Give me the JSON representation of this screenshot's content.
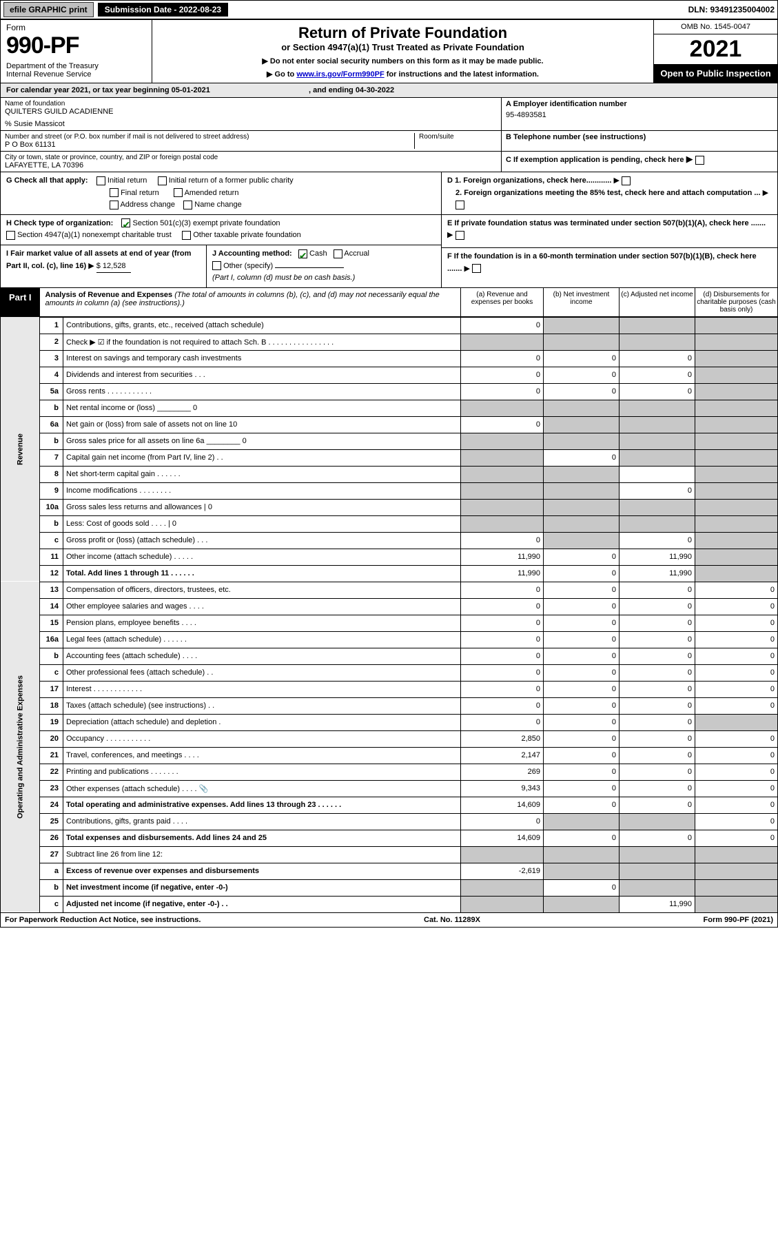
{
  "topbar": {
    "efile": "efile GRAPHIC print",
    "submission_label": "Submission Date - 2022-08-23",
    "dln": "DLN: 93491235004002"
  },
  "header": {
    "form_word": "Form",
    "form_number": "990-PF",
    "dept": "Department of the Treasury\nInternal Revenue Service",
    "title": "Return of Private Foundation",
    "subtitle": "or Section 4947(a)(1) Trust Treated as Private Foundation",
    "note1": "▶ Do not enter social security numbers on this form as it may be made public.",
    "note2": "▶ Go to www.irs.gov/Form990PF for instructions and the latest information.",
    "omb": "OMB No. 1545-0047",
    "year": "2021",
    "open": "Open to Public Inspection"
  },
  "cal": {
    "text": "For calendar year 2021, or tax year beginning 05-01-2021",
    "ending_label": ", and ending 04-30-2022"
  },
  "entity": {
    "name_label": "Name of foundation",
    "name": "QUILTERS GUILD ACADIENNE",
    "care_of": "% Susie Massicot",
    "addr_label": "Number and street (or P.O. box number if mail is not delivered to street address)",
    "addr": "P O Box 61131",
    "room_label": "Room/suite",
    "city_label": "City or town, state or province, country, and ZIP or foreign postal code",
    "city": "LAFAYETTE, LA  70396",
    "ein_label": "A Employer identification number",
    "ein": "95-4893581",
    "tel_label": "B Telephone number (see instructions)",
    "c_label": "C If exemption application is pending, check here",
    "d1": "D 1. Foreign organizations, check here............",
    "d2": "2. Foreign organizations meeting the 85% test, check here and attach computation ...",
    "e": "E  If private foundation status was terminated under section 507(b)(1)(A), check here .......",
    "f": "F  If the foundation is in a 60-month termination under section 507(b)(1)(B), check here .......",
    "g_label": "G Check all that apply:",
    "g_opts": [
      "Initial return",
      "Initial return of a former public charity",
      "Final return",
      "Amended return",
      "Address change",
      "Name change"
    ],
    "h_label": "H Check type of organization:",
    "h_opt1": "Section 501(c)(3) exempt private foundation",
    "h_opt2": "Section 4947(a)(1) nonexempt charitable trust",
    "h_opt3": "Other taxable private foundation",
    "i_label": "I Fair market value of all assets at end of year (from Part II, col. (c), line 16)",
    "i_value": "$ 12,528",
    "j_label": "J Accounting method:",
    "j_cash": "Cash",
    "j_accrual": "Accrual",
    "j_other": "Other (specify)",
    "j_note": "(Part I, column (d) must be on cash basis.)"
  },
  "partI": {
    "label": "Part I",
    "title": "Analysis of Revenue and Expenses",
    "note": "(The total of amounts in columns (b), (c), and (d) may not necessarily equal the amounts in column (a) (see instructions).)",
    "cols": {
      "a": "(a)  Revenue and expenses per books",
      "b": "(b)  Net investment income",
      "c": "(c)  Adjusted net income",
      "d": "(d)  Disbursements for charitable purposes (cash basis only)"
    }
  },
  "sides": {
    "revenue": "Revenue",
    "expenses": "Operating and Administrative Expenses"
  },
  "rows": [
    {
      "n": "1",
      "lbl": "Contributions, gifts, grants, etc., received (attach schedule)",
      "a": "0",
      "b": "",
      "c": "",
      "d": "",
      "shade": [
        "b",
        "c",
        "d"
      ]
    },
    {
      "n": "2",
      "lbl": "Check ▶ ☑ if the foundation is not required to attach Sch. B  . . . . . . . . . . . . . . . .",
      "a": "",
      "b": "",
      "c": "",
      "d": "",
      "shade": [
        "a",
        "b",
        "c",
        "d"
      ]
    },
    {
      "n": "3",
      "lbl": "Interest on savings and temporary cash investments",
      "a": "0",
      "b": "0",
      "c": "0",
      "d": "",
      "shade": [
        "d"
      ]
    },
    {
      "n": "4",
      "lbl": "Dividends and interest from securities  . . .",
      "a": "0",
      "b": "0",
      "c": "0",
      "d": "",
      "shade": [
        "d"
      ]
    },
    {
      "n": "5a",
      "lbl": "Gross rents  . . . . . . . . . . .",
      "a": "0",
      "b": "0",
      "c": "0",
      "d": "",
      "shade": [
        "d"
      ]
    },
    {
      "n": "b",
      "lbl": "Net rental income or (loss)  ________ 0",
      "a": "",
      "b": "",
      "c": "",
      "d": "",
      "shade": [
        "a",
        "b",
        "c",
        "d"
      ]
    },
    {
      "n": "6a",
      "lbl": "Net gain or (loss) from sale of assets not on line 10",
      "a": "0",
      "b": "",
      "c": "",
      "d": "",
      "shade": [
        "b",
        "c",
        "d"
      ]
    },
    {
      "n": "b",
      "lbl": "Gross sales price for all assets on line 6a ________ 0",
      "a": "",
      "b": "",
      "c": "",
      "d": "",
      "shade": [
        "a",
        "b",
        "c",
        "d"
      ]
    },
    {
      "n": "7",
      "lbl": "Capital gain net income (from Part IV, line 2)  . .",
      "a": "",
      "b": "0",
      "c": "",
      "d": "",
      "shade": [
        "a",
        "c",
        "d"
      ]
    },
    {
      "n": "8",
      "lbl": "Net short-term capital gain  . . . . . .",
      "a": "",
      "b": "",
      "c": "",
      "d": "",
      "shade": [
        "a",
        "b",
        "d"
      ]
    },
    {
      "n": "9",
      "lbl": "Income modifications  . . . . . . . .",
      "a": "",
      "b": "",
      "c": "0",
      "d": "",
      "shade": [
        "a",
        "b",
        "d"
      ]
    },
    {
      "n": "10a",
      "lbl": "Gross sales less returns and allowances  |    0",
      "a": "",
      "b": "",
      "c": "",
      "d": "",
      "shade": [
        "a",
        "b",
        "c",
        "d"
      ]
    },
    {
      "n": "b",
      "lbl": "Less: Cost of goods sold  . . . .  |    0",
      "a": "",
      "b": "",
      "c": "",
      "d": "",
      "shade": [
        "a",
        "b",
        "c",
        "d"
      ]
    },
    {
      "n": "c",
      "lbl": "Gross profit or (loss) (attach schedule)  . . .",
      "a": "0",
      "b": "",
      "c": "0",
      "d": "",
      "shade": [
        "b",
        "d"
      ]
    },
    {
      "n": "11",
      "lbl": "Other income (attach schedule)  . . . . .",
      "a": "11,990",
      "b": "0",
      "c": "11,990",
      "d": "",
      "shade": [
        "d"
      ]
    },
    {
      "n": "12",
      "lbl": "Total. Add lines 1 through 11  . . . . . .",
      "a": "11,990",
      "b": "0",
      "c": "11,990",
      "d": "",
      "shade": [
        "d"
      ],
      "bold": true
    },
    {
      "n": "13",
      "lbl": "Compensation of officers, directors, trustees, etc.",
      "a": "0",
      "b": "0",
      "c": "0",
      "d": "0"
    },
    {
      "n": "14",
      "lbl": "Other employee salaries and wages  . . . .",
      "a": "0",
      "b": "0",
      "c": "0",
      "d": "0"
    },
    {
      "n": "15",
      "lbl": "Pension plans, employee benefits  . . . .",
      "a": "0",
      "b": "0",
      "c": "0",
      "d": "0"
    },
    {
      "n": "16a",
      "lbl": "Legal fees (attach schedule)  . . . . . .",
      "a": "0",
      "b": "0",
      "c": "0",
      "d": "0"
    },
    {
      "n": "b",
      "lbl": "Accounting fees (attach schedule)  . . . .",
      "a": "0",
      "b": "0",
      "c": "0",
      "d": "0"
    },
    {
      "n": "c",
      "lbl": "Other professional fees (attach schedule)  . .",
      "a": "0",
      "b": "0",
      "c": "0",
      "d": "0"
    },
    {
      "n": "17",
      "lbl": "Interest  . . . . . . . . . . . .",
      "a": "0",
      "b": "0",
      "c": "0",
      "d": "0"
    },
    {
      "n": "18",
      "lbl": "Taxes (attach schedule) (see instructions)  . .",
      "a": "0",
      "b": "0",
      "c": "0",
      "d": "0"
    },
    {
      "n": "19",
      "lbl": "Depreciation (attach schedule) and depletion  .",
      "a": "0",
      "b": "0",
      "c": "0",
      "d": "",
      "shade": [
        "d"
      ]
    },
    {
      "n": "20",
      "lbl": "Occupancy  . . . . . . . . . . .",
      "a": "2,850",
      "b": "0",
      "c": "0",
      "d": "0"
    },
    {
      "n": "21",
      "lbl": "Travel, conferences, and meetings  . . . .",
      "a": "2,147",
      "b": "0",
      "c": "0",
      "d": "0"
    },
    {
      "n": "22",
      "lbl": "Printing and publications  . . . . . . .",
      "a": "269",
      "b": "0",
      "c": "0",
      "d": "0"
    },
    {
      "n": "23",
      "lbl": "Other expenses (attach schedule)  . . . . 📎",
      "a": "9,343",
      "b": "0",
      "c": "0",
      "d": "0"
    },
    {
      "n": "24",
      "lbl": "Total operating and administrative expenses. Add lines 13 through 23  . . . . . .",
      "a": "14,609",
      "b": "0",
      "c": "0",
      "d": "0",
      "bold": true
    },
    {
      "n": "25",
      "lbl": "Contributions, gifts, grants paid  . . . .",
      "a": "0",
      "b": "",
      "c": "",
      "d": "0",
      "shade": [
        "b",
        "c"
      ]
    },
    {
      "n": "26",
      "lbl": "Total expenses and disbursements. Add lines 24 and 25",
      "a": "14,609",
      "b": "0",
      "c": "0",
      "d": "0",
      "bold": true
    },
    {
      "n": "27",
      "lbl": "Subtract line 26 from line 12:",
      "a": "",
      "b": "",
      "c": "",
      "d": "",
      "shade": [
        "a",
        "b",
        "c",
        "d"
      ]
    },
    {
      "n": "a",
      "lbl": "Excess of revenue over expenses and disbursements",
      "a": "-2,619",
      "b": "",
      "c": "",
      "d": "",
      "shade": [
        "b",
        "c",
        "d"
      ],
      "bold": true
    },
    {
      "n": "b",
      "lbl": "Net investment income (if negative, enter -0-)",
      "a": "",
      "b": "0",
      "c": "",
      "d": "",
      "shade": [
        "a",
        "c",
        "d"
      ],
      "bold": true
    },
    {
      "n": "c",
      "lbl": "Adjusted net income (if negative, enter -0-)  . .",
      "a": "",
      "b": "",
      "c": "11,990",
      "d": "",
      "shade": [
        "a",
        "b",
        "d"
      ],
      "bold": true
    }
  ],
  "footer": {
    "left": "For Paperwork Reduction Act Notice, see instructions.",
    "center": "Cat. No. 11289X",
    "right": "Form 990-PF (2021)"
  },
  "colors": {
    "shade": "#c8c8c8",
    "header_band": "#e8e8e8",
    "black": "#000000",
    "link": "#0000cc",
    "check_green": "#0a7a0a"
  }
}
